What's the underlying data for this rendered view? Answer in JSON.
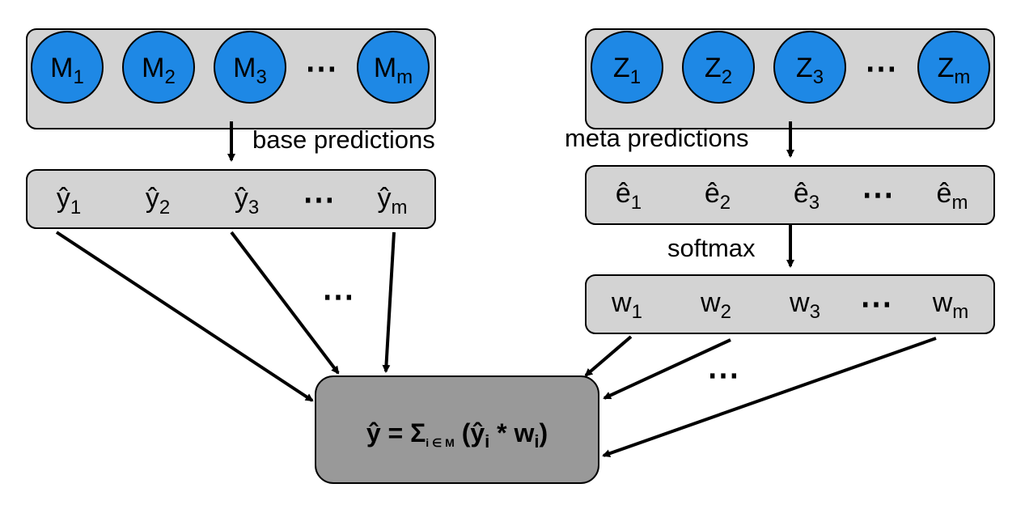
{
  "colors": {
    "container_fill": "#d3d3d3",
    "circle_fill": "#1e88e5",
    "output_fill": "#999999",
    "stroke": "#000000"
  },
  "base_models": {
    "prefix": "M",
    "subs": [
      "1",
      "2",
      "3",
      "m"
    ],
    "ellipsis": "⋯"
  },
  "meta_models": {
    "prefix": "Z",
    "subs": [
      "1",
      "2",
      "3",
      "m"
    ],
    "ellipsis": "⋯"
  },
  "base_preds": {
    "prefix": "ŷ",
    "subs": [
      "1",
      "2",
      "3",
      "m"
    ],
    "ellipsis": "⋯"
  },
  "meta_preds": {
    "prefix": "ê",
    "subs": [
      "1",
      "2",
      "3",
      "m"
    ],
    "ellipsis": "⋯"
  },
  "weights": {
    "prefix": "w",
    "subs": [
      "1",
      "2",
      "3",
      "m"
    ],
    "ellipsis": "⋯"
  },
  "labels": {
    "base_predictions": "base predictions",
    "meta_predictions": "meta predictions",
    "softmax": "softmax",
    "left_ellipsis": "⋯",
    "right_ellipsis": "⋯"
  },
  "formula": {
    "lhs": "ŷ = ",
    "sigma": "Σ",
    "sigma_sub": "i ∈ M",
    "open": " (",
    "y_term": "ŷ",
    "y_sub": "i",
    "times": " * ",
    "w_term": "w",
    "w_sub": "i",
    "close": ")"
  }
}
